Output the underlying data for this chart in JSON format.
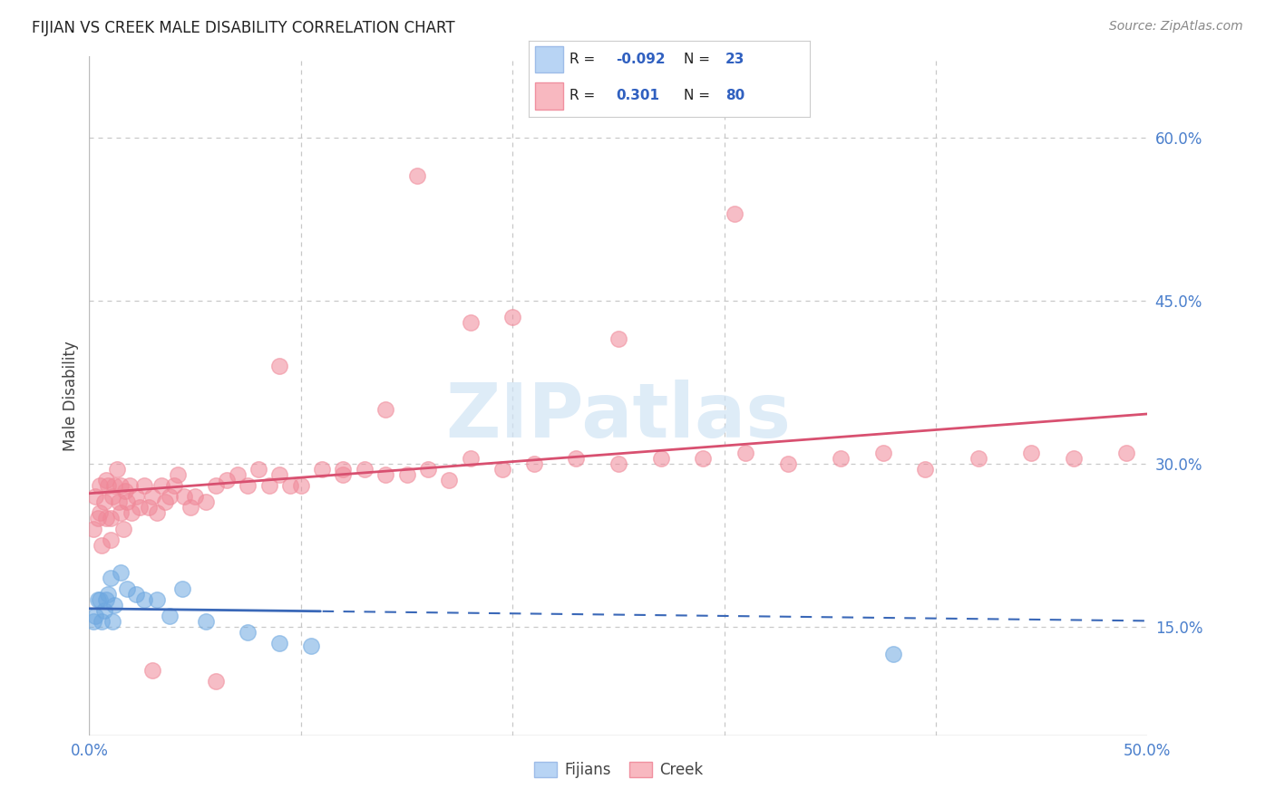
{
  "title": "FIJIAN VS CREEK MALE DISABILITY CORRELATION CHART",
  "source": "Source: ZipAtlas.com",
  "ylabel": "Male Disability",
  "xmin": 0.0,
  "xmax": 0.5,
  "ymin": 0.05,
  "ymax": 0.675,
  "yticks": [
    0.15,
    0.3,
    0.45,
    0.6
  ],
  "ytick_labels": [
    "15.0%",
    "30.0%",
    "45.0%",
    "60.0%"
  ],
  "xticks": [
    0.0,
    0.1,
    0.2,
    0.3,
    0.4,
    0.5
  ],
  "xtick_labels": [
    "0.0%",
    "",
    "",
    "",
    "",
    "50.0%"
  ],
  "fijian_color": "#6ea8e0",
  "creek_color": "#f08898",
  "fijian_line_color": "#3a68b8",
  "creek_line_color": "#d85070",
  "legend_fijian_fill": "#b8d4f4",
  "legend_creek_fill": "#f8b8c0",
  "R_fijian": -0.092,
  "N_fijian": 23,
  "R_creek": 0.301,
  "N_creek": 80,
  "watermark": "ZIPatlas",
  "background_color": "#ffffff",
  "grid_color": "#c8c8c8",
  "fijian_x": [
    0.002,
    0.003,
    0.004,
    0.005,
    0.006,
    0.007,
    0.008,
    0.009,
    0.01,
    0.011,
    0.012,
    0.015,
    0.018,
    0.022,
    0.026,
    0.032,
    0.038,
    0.044,
    0.055,
    0.075,
    0.09,
    0.105,
    0.38
  ],
  "fijian_y": [
    0.155,
    0.16,
    0.175,
    0.175,
    0.155,
    0.165,
    0.175,
    0.18,
    0.195,
    0.155,
    0.17,
    0.2,
    0.185,
    0.18,
    0.175,
    0.175,
    0.16,
    0.185,
    0.155,
    0.145,
    0.135,
    0.132,
    0.125
  ],
  "creek_x": [
    0.002,
    0.003,
    0.004,
    0.005,
    0.005,
    0.006,
    0.007,
    0.008,
    0.008,
    0.009,
    0.01,
    0.01,
    0.011,
    0.012,
    0.013,
    0.014,
    0.015,
    0.015,
    0.016,
    0.017,
    0.018,
    0.019,
    0.02,
    0.022,
    0.024,
    0.026,
    0.028,
    0.03,
    0.032,
    0.034,
    0.036,
    0.038,
    0.04,
    0.042,
    0.045,
    0.048,
    0.05,
    0.055,
    0.06,
    0.065,
    0.07,
    0.075,
    0.08,
    0.085,
    0.09,
    0.095,
    0.1,
    0.11,
    0.12,
    0.13,
    0.14,
    0.15,
    0.16,
    0.17,
    0.18,
    0.195,
    0.21,
    0.23,
    0.25,
    0.27,
    0.29,
    0.31,
    0.33,
    0.355,
    0.375,
    0.395,
    0.42,
    0.445,
    0.465,
    0.49,
    0.155,
    0.305,
    0.2,
    0.18,
    0.25,
    0.14,
    0.12,
    0.09,
    0.06,
    0.03
  ],
  "creek_y": [
    0.24,
    0.27,
    0.25,
    0.28,
    0.255,
    0.225,
    0.265,
    0.285,
    0.25,
    0.28,
    0.25,
    0.23,
    0.27,
    0.28,
    0.295,
    0.265,
    0.28,
    0.255,
    0.24,
    0.275,
    0.265,
    0.28,
    0.255,
    0.27,
    0.26,
    0.28,
    0.26,
    0.27,
    0.255,
    0.28,
    0.265,
    0.27,
    0.28,
    0.29,
    0.27,
    0.26,
    0.27,
    0.265,
    0.28,
    0.285,
    0.29,
    0.28,
    0.295,
    0.28,
    0.29,
    0.28,
    0.28,
    0.295,
    0.29,
    0.295,
    0.29,
    0.29,
    0.295,
    0.285,
    0.305,
    0.295,
    0.3,
    0.305,
    0.3,
    0.305,
    0.305,
    0.31,
    0.3,
    0.305,
    0.31,
    0.295,
    0.305,
    0.31,
    0.305,
    0.31,
    0.565,
    0.53,
    0.435,
    0.43,
    0.415,
    0.35,
    0.295,
    0.39,
    0.1,
    0.11
  ]
}
